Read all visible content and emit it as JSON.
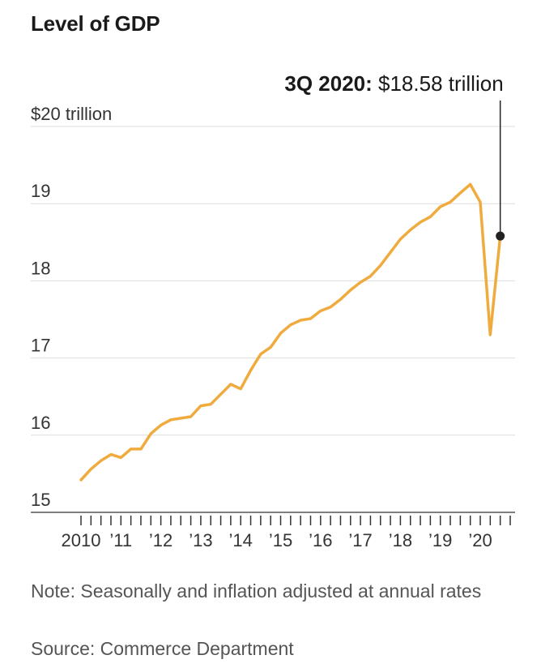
{
  "title": "Level of GDP",
  "note": "Note: Seasonally and inflation adjusted at annual rates",
  "source": "Source: Commerce Department",
  "colors": {
    "line": "#f0ab3e",
    "grid": "#dddddd",
    "axis": "#333333",
    "marker": "#222222"
  },
  "chart_data": {
    "type": "line",
    "title": "Level of GDP",
    "units": "trillion dollars",
    "ylim": [
      15,
      20
    ],
    "yticks": [
      15,
      16,
      17,
      18,
      19,
      20
    ],
    "ytick_labels": [
      "15",
      "16",
      "17",
      "18",
      "19",
      "$20 trillion"
    ],
    "xlim": [
      2010,
      2020.75
    ],
    "xticks": [
      2010,
      2011,
      2012,
      2013,
      2014,
      2015,
      2016,
      2017,
      2018,
      2019,
      2020
    ],
    "xtick_labels": [
      "2010",
      "’11",
      "’12",
      "’13",
      "’14",
      "’15",
      "’16",
      "’17",
      "’18",
      "’19",
      "’20"
    ],
    "grid": true,
    "series": [
      {
        "frequency": "quarterly",
        "x": [
          "1Q 2010",
          "2Q 2010",
          "3Q 2010",
          "4Q 2010",
          "1Q 2011",
          "2Q 2011",
          "3Q 2011",
          "4Q 2011",
          "1Q 2012",
          "2Q 2012",
          "3Q 2012",
          "4Q 2012",
          "1Q 2013",
          "2Q 2013",
          "3Q 2013",
          "4Q 2013",
          "1Q 2014",
          "2Q 2014",
          "3Q 2014",
          "4Q 2014",
          "1Q 2015",
          "2Q 2015",
          "3Q 2015",
          "4Q 2015",
          "1Q 2016",
          "2Q 2016",
          "3Q 2016",
          "4Q 2016",
          "1Q 2017",
          "2Q 2017",
          "3Q 2017",
          "4Q 2017",
          "1Q 2018",
          "2Q 2018",
          "3Q 2018",
          "4Q 2018",
          "1Q 2019",
          "2Q 2019",
          "3Q 2019",
          "4Q 2019",
          "1Q 2020",
          "2Q 2020",
          "3Q 2020"
        ],
        "values": [
          15.42,
          15.56,
          15.67,
          15.75,
          15.71,
          15.82,
          15.82,
          16.02,
          16.13,
          16.2,
          16.22,
          16.24,
          16.38,
          16.4,
          16.53,
          16.66,
          16.6,
          16.84,
          17.05,
          17.14,
          17.32,
          17.43,
          17.49,
          17.51,
          17.61,
          17.66,
          17.76,
          17.88,
          17.98,
          18.06,
          18.2,
          18.37,
          18.54,
          18.66,
          18.76,
          18.83,
          18.96,
          19.02,
          19.14,
          19.25,
          19.02,
          17.3,
          18.58
        ]
      }
    ],
    "annotation": {
      "label_bold": "3Q 2020:",
      "label_value": " $18.58 trillion",
      "x": "3Q 2020",
      "y": 18.58
    }
  }
}
